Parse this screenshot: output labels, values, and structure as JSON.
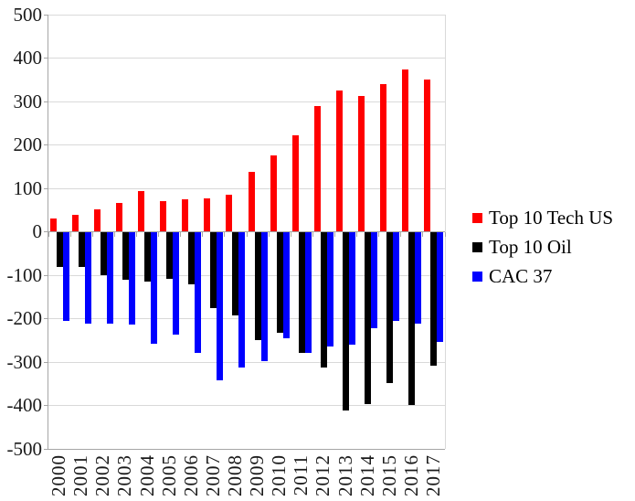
{
  "chart_data": {
    "type": "bar",
    "categories": [
      "2000",
      "2001",
      "2002",
      "2003",
      "2004",
      "2005",
      "2006",
      "2007",
      "2008",
      "2009",
      "2010",
      "2011",
      "2012",
      "2013",
      "2014",
      "2015",
      "2016",
      "2017"
    ],
    "series": [
      {
        "name": "Top 10 Tech US",
        "color": "#FF0000",
        "values": [
          30,
          40,
          52,
          67,
          93,
          71,
          74,
          77,
          85,
          138,
          176,
          222,
          290,
          325,
          312,
          340,
          374,
          350
        ]
      },
      {
        "name": "Top 10 Oil",
        "color": "#000000",
        "values": [
          -80,
          -82,
          -101,
          -111,
          -114,
          -108,
          -120,
          -175,
          -192,
          -250,
          -232,
          -278,
          -313,
          -412,
          -397,
          -348,
          -398,
          -309
        ]
      },
      {
        "name": "CAC 37",
        "color": "#0000FF",
        "values": [
          -205,
          -212,
          -212,
          -213,
          -258,
          -237,
          -278,
          -342,
          -312,
          -298,
          -246,
          -278,
          -265,
          -260,
          -223,
          -205,
          -212,
          -254
        ]
      }
    ],
    "ylim": [
      -500,
      500
    ],
    "ytick_step": 100,
    "yticks": [
      "500",
      "400",
      "300",
      "200",
      "100",
      "0",
      "-100",
      "-200",
      "-300",
      "-400",
      "-500"
    ],
    "grid": true,
    "legend_position": "right",
    "colors": {
      "grid": "#D9D9D9",
      "axis": "#A6A6A6",
      "tick_label": "#1A1A1A",
      "background": "#FFFFFF"
    }
  }
}
